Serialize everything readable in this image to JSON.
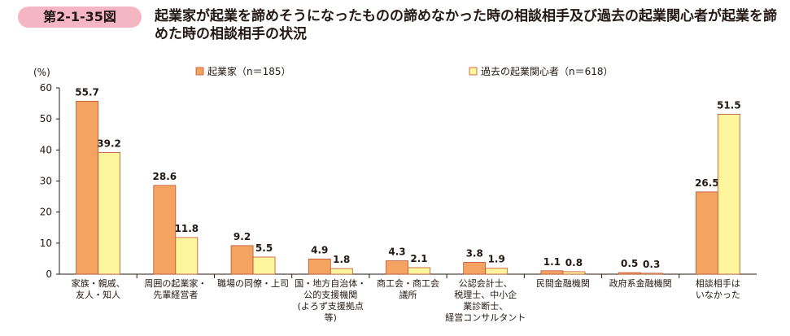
{
  "figure": {
    "number": "第2-1-35図",
    "title": "起業家が起業を諦めそうになったものの諦めなかった時の相談相手及び過去の起業関心者が起業を諦めた時の相談相手の状況"
  },
  "chart_data": {
    "type": "bar",
    "title": "起業家が起業を諦めそうになったものの諦めなかった時の相談相手及び過去の起業関心者が起業を諦めた時の相談相手の状況",
    "y_unit_label": "(%)",
    "ylim": [
      0,
      60
    ],
    "yticks": [
      0,
      10,
      20,
      30,
      40,
      50,
      60
    ],
    "grid": false,
    "legend_position": "top",
    "categories": [
      [
        "家族・親戚、",
        "友人・知人"
      ],
      [
        "周囲の起業家・",
        "先輩経営者"
      ],
      [
        "職場の同僚・上司"
      ],
      [
        "国・地方自治体・",
        "公的支援機関",
        "(よろず支援拠点",
        "等)"
      ],
      [
        "商工会・商工会",
        "議所"
      ],
      [
        "公認会計士、",
        "税理士、中小企",
        "業診断士、",
        "経営コンサルタント"
      ],
      [
        "民間金融機関"
      ],
      [
        "政府系金融機関"
      ],
      [
        "相談相手は",
        "いなかった"
      ]
    ],
    "series": [
      {
        "name": "起業家（n＝185）",
        "color": "#f4a460",
        "values": [
          55.7,
          28.6,
          9.2,
          4.9,
          4.3,
          3.8,
          1.1,
          0.5,
          26.5
        ],
        "labels": [
          "55.7",
          "28.6",
          "9.2",
          "4.9",
          "4.3",
          "3.8",
          "1.1",
          "0.5",
          "26.5"
        ]
      },
      {
        "name": "過去の起業関心者（n＝618）",
        "color": "#fff59d",
        "values": [
          39.2,
          11.8,
          5.5,
          1.8,
          2.1,
          1.9,
          0.8,
          0.3,
          51.5
        ],
        "labels": [
          "39.2",
          "11.8",
          "5.5",
          "1.8",
          "2.1",
          "1.9",
          "0.8",
          "0.3",
          "51.5"
        ]
      }
    ]
  }
}
